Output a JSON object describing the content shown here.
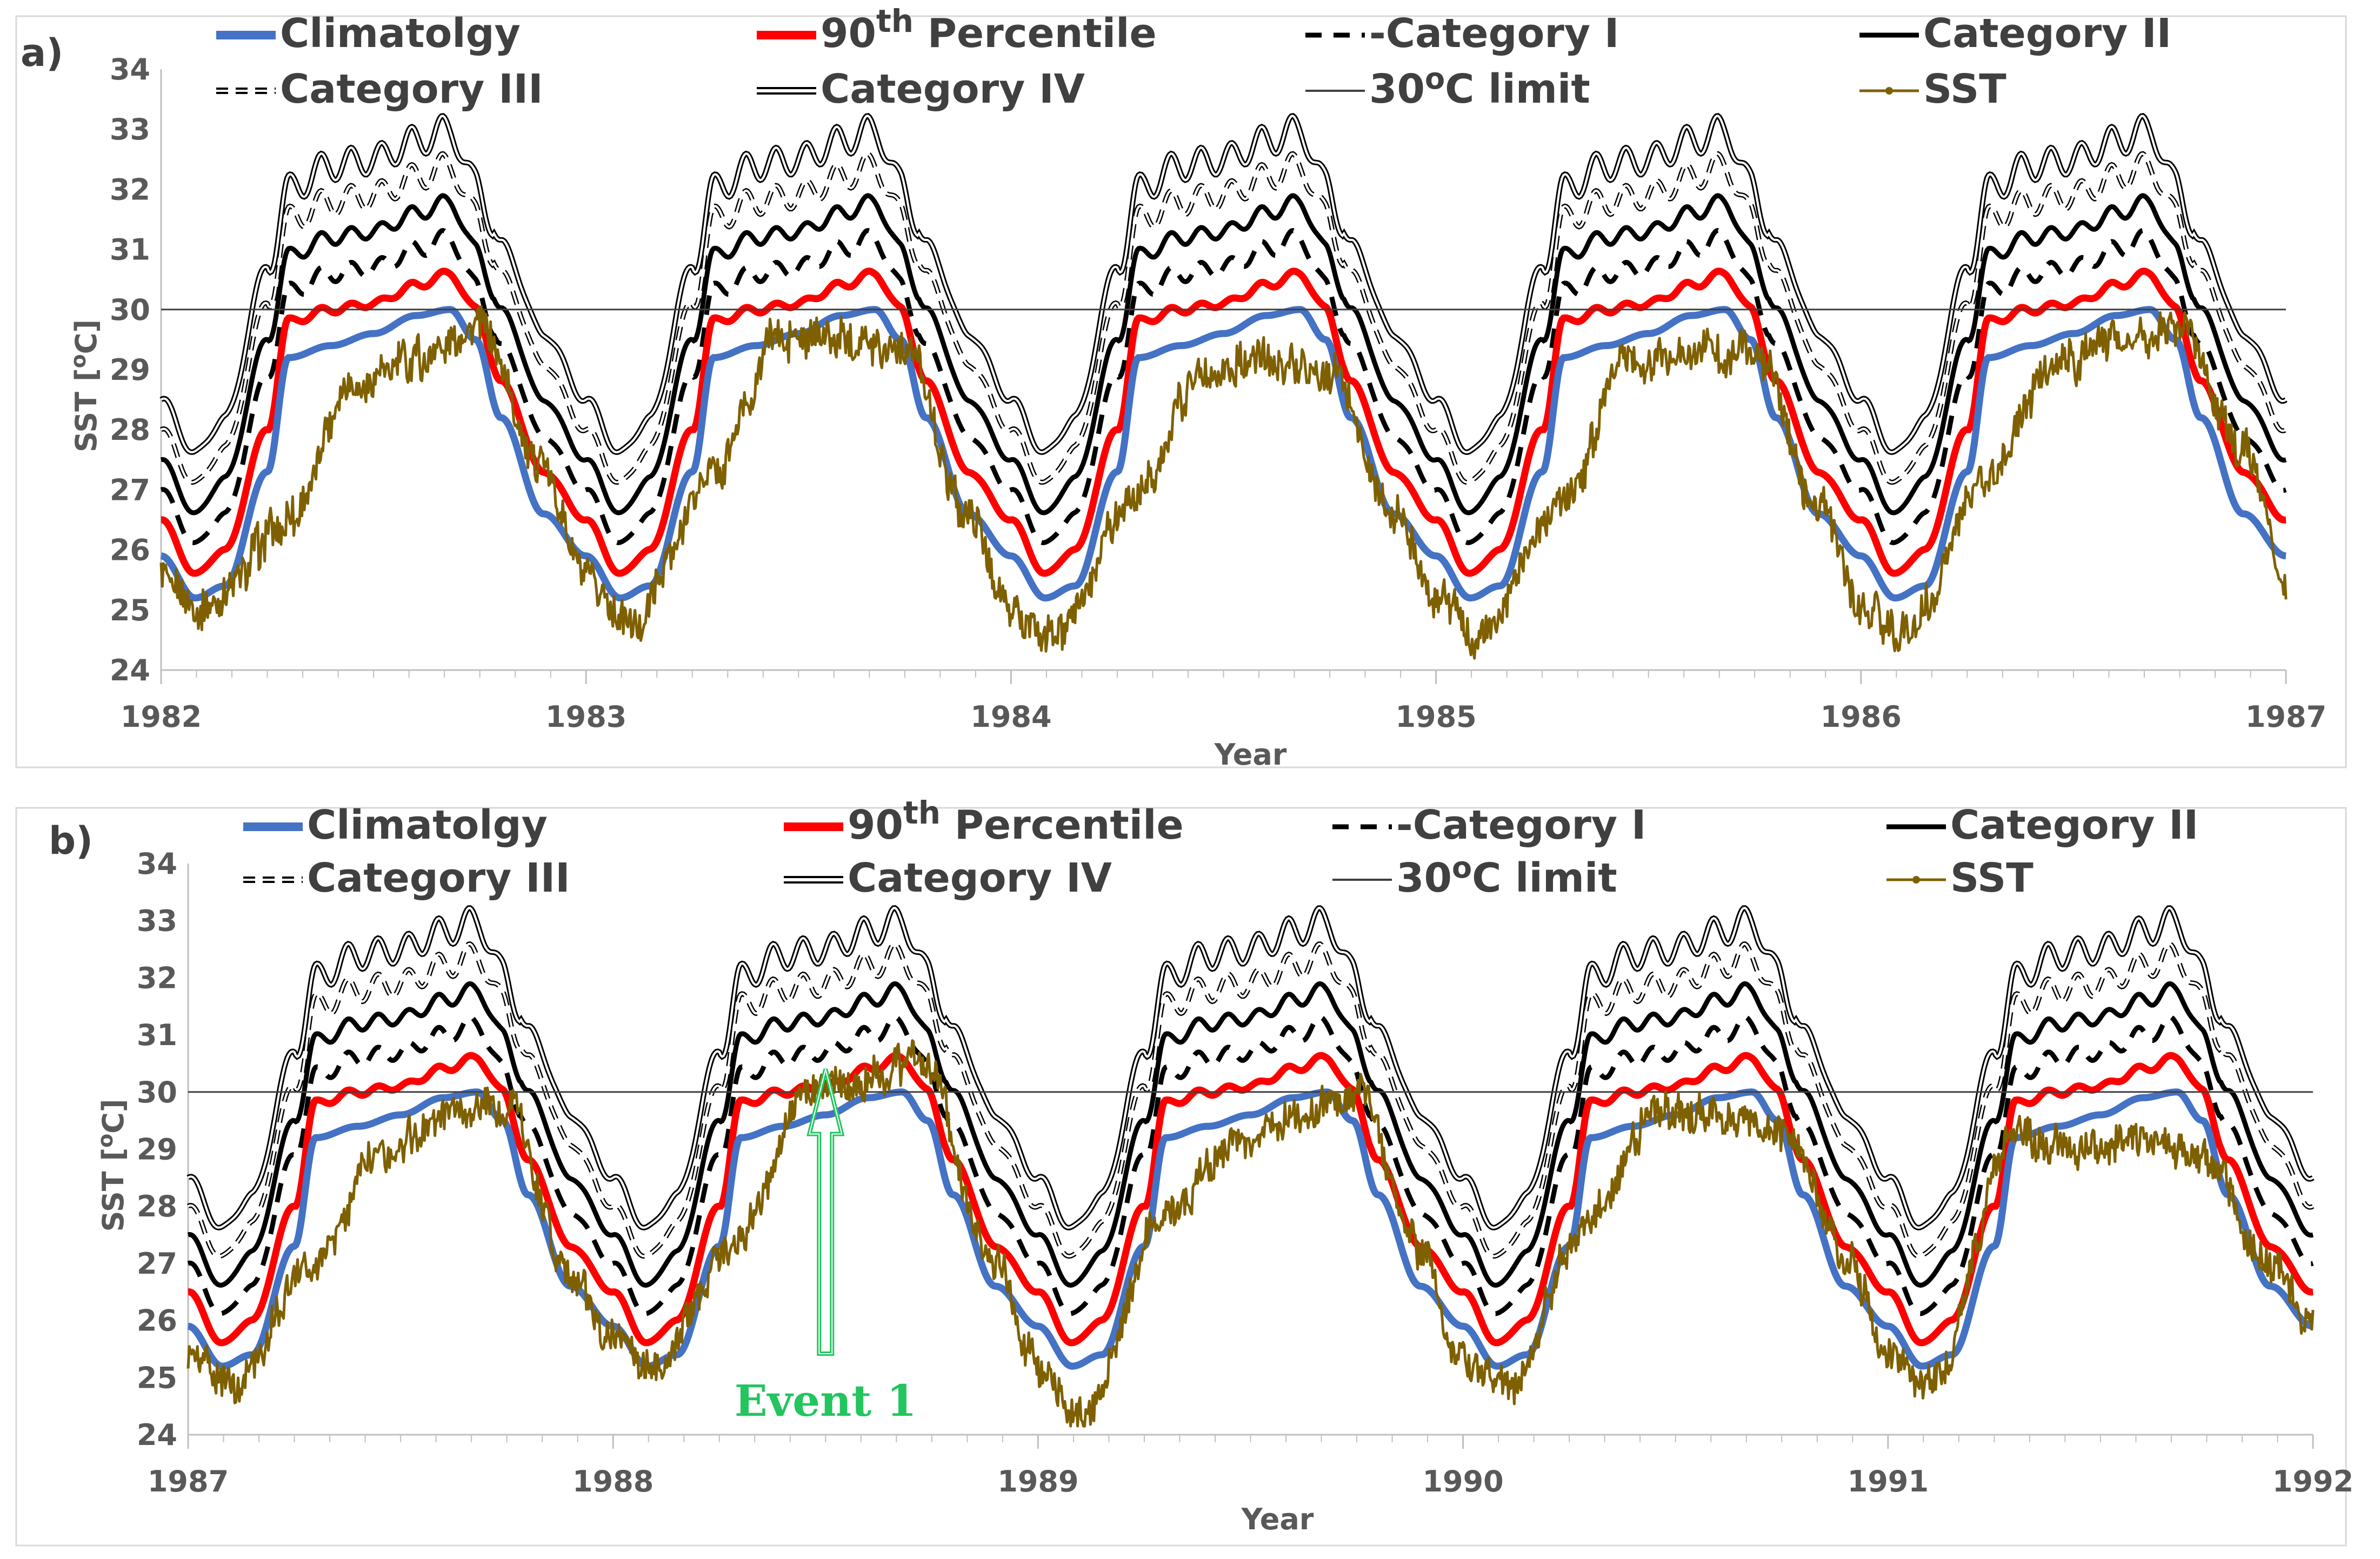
{
  "colors": {
    "climatology": "#4472c4",
    "p90": "#ff0000",
    "black": "#000000",
    "sst": "#7f6000",
    "limit": "#404040",
    "event": "#22c55e",
    "axis_text": "#595959"
  },
  "legend_items": [
    {
      "label": "Climatolgy",
      "style": "climatology"
    },
    {
      "label": "90th Percentile",
      "style": "p90"
    },
    {
      "label": "-Category I",
      "style": "cat1"
    },
    {
      "label": "Category II",
      "style": "cat2"
    },
    {
      "label": "Category III",
      "style": "cat3"
    },
    {
      "label": "Category IV",
      "style": "cat4"
    },
    {
      "label": "30oC limit",
      "style": "limit"
    },
    {
      "label": "SST",
      "style": "sst"
    }
  ],
  "legend_parts": {
    "p90_num": "90",
    "p90_sup": "th",
    "p90_rest": " Percentile",
    "limit_num": "30",
    "limit_sup": "o",
    "limit_rest": "C limit"
  },
  "ylabel_parts": {
    "main": "SST [",
    "sup": "o",
    "unit": "C]"
  },
  "chart_data": [
    {
      "type": "line",
      "panel_label": "a)",
      "xlabel": "Year",
      "ylabel": "SST [oC]",
      "ylim": [
        24,
        34
      ],
      "yticks": [
        24,
        25,
        26,
        27,
        28,
        29,
        30,
        31,
        32,
        33,
        34
      ],
      "xlim": [
        1982,
        1987
      ],
      "xticks": [
        1982,
        1983,
        1984,
        1985,
        1986,
        1987
      ],
      "climatology_annual_cycle": {
        "day_fraction": [
          0.0,
          0.08,
          0.15,
          0.25,
          0.3,
          0.4,
          0.5,
          0.6,
          0.68,
          0.74,
          0.8,
          0.9,
          1.0
        ],
        "climatology": [
          25.9,
          25.2,
          25.4,
          27.3,
          29.2,
          29.4,
          29.6,
          29.9,
          30.0,
          29.5,
          28.2,
          26.6,
          25.9
        ],
        "percentile_90": [
          26.5,
          25.6,
          26.0,
          28.0,
          29.8,
          30.0,
          30.1,
          30.4,
          30.6,
          30.0,
          28.8,
          27.3,
          26.5
        ],
        "category_1": [
          27.0,
          26.1,
          26.6,
          28.9,
          30.3,
          30.6,
          30.7,
          31.0,
          31.2,
          30.4,
          29.4,
          27.9,
          27.0
        ],
        "category_2": [
          27.5,
          26.6,
          27.2,
          29.5,
          30.9,
          31.2,
          31.3,
          31.6,
          31.8,
          31.0,
          30.0,
          28.5,
          27.5
        ],
        "category_3": [
          28.0,
          27.1,
          27.7,
          30.1,
          31.5,
          31.8,
          31.9,
          32.2,
          32.4,
          31.6,
          30.6,
          29.1,
          28.0
        ],
        "category_4": [
          28.5,
          27.6,
          28.2,
          30.7,
          32.0,
          32.4,
          32.5,
          32.8,
          33.0,
          32.1,
          31.1,
          29.6,
          28.5
        ]
      },
      "limit": 30,
      "sst_approx": {
        "year": [
          1982.0,
          1982.1,
          1982.3,
          1982.45,
          1982.6,
          1982.75,
          1982.9,
          1983.0,
          1983.1,
          1983.3,
          1983.45,
          1983.6,
          1983.75,
          1983.9,
          1984.0,
          1984.1,
          1984.3,
          1984.45,
          1984.6,
          1984.75,
          1984.9,
          1985.0,
          1985.1,
          1985.3,
          1985.45,
          1985.6,
          1985.75,
          1985.9,
          1986.0,
          1986.1,
          1986.3,
          1986.45,
          1986.6,
          1986.75,
          1986.9,
          1987.0
        ],
        "values": [
          25.5,
          24.9,
          26.5,
          28.8,
          29.2,
          29.7,
          27.4,
          25.5,
          24.7,
          27.2,
          29.5,
          29.5,
          29.4,
          26.6,
          25.0,
          24.5,
          27.0,
          29.0,
          29.2,
          29.0,
          26.6,
          25.3,
          24.5,
          26.8,
          29.1,
          29.3,
          29.3,
          26.8,
          25.0,
          24.6,
          27.3,
          29.0,
          29.5,
          29.7,
          27.7,
          25.5
        ]
      }
    },
    {
      "type": "line",
      "panel_label": "b)",
      "xlabel": "Year",
      "ylabel": "SST [oC]",
      "ylim": [
        24,
        34
      ],
      "yticks": [
        24,
        25,
        26,
        27,
        28,
        29,
        30,
        31,
        32,
        33,
        34
      ],
      "xlim": [
        1987,
        1992
      ],
      "xticks": [
        1987,
        1988,
        1989,
        1990,
        1991,
        1992
      ],
      "limit": 30,
      "sst_approx": {
        "year": [
          1987.0,
          1987.1,
          1987.3,
          1987.45,
          1987.6,
          1987.75,
          1987.9,
          1988.0,
          1988.1,
          1988.3,
          1988.45,
          1988.6,
          1988.72,
          1988.9,
          1989.0,
          1989.1,
          1989.3,
          1989.45,
          1989.6,
          1989.75,
          1989.9,
          1990.0,
          1990.1,
          1990.3,
          1990.45,
          1990.6,
          1990.75,
          1990.9,
          1991.0,
          1991.1,
          1991.3,
          1991.45,
          1991.6,
          1991.75,
          1991.9,
          1992.0
        ],
        "values": [
          25.5,
          24.9,
          27.0,
          29.0,
          29.5,
          29.8,
          26.8,
          25.6,
          25.3,
          27.5,
          30.0,
          30.2,
          30.6,
          27.0,
          25.2,
          24.3,
          27.8,
          29.0,
          29.5,
          30.0,
          27.3,
          25.3,
          24.8,
          27.8,
          29.6,
          29.6,
          29.4,
          27.2,
          25.3,
          24.9,
          29.2,
          29.0,
          29.2,
          28.8,
          27.0,
          25.9
        ]
      },
      "annotation": {
        "text": "Event 1",
        "year": 1988.5,
        "value": 30.4
      }
    }
  ]
}
